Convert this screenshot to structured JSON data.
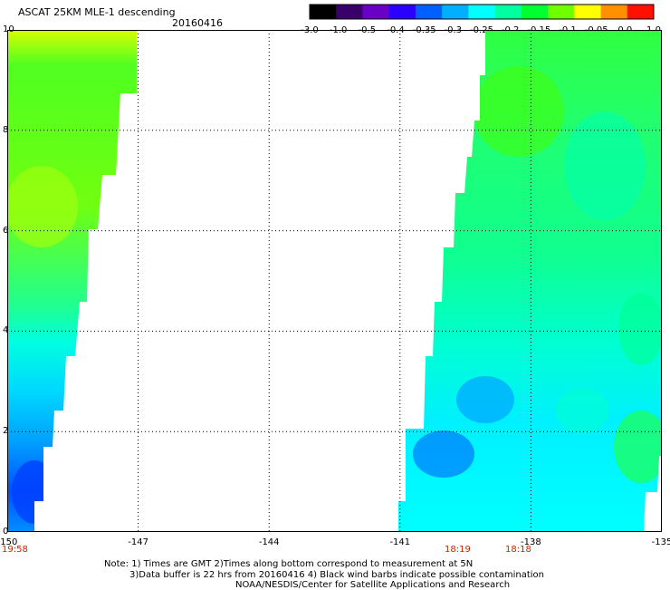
{
  "header": {
    "title": "ASCAT 25KM MLE-1 descending",
    "date": "20160416"
  },
  "colorbar": {
    "labels": [
      "-3.0",
      "-1.0",
      "-0.5",
      "-0.4",
      "-0.35",
      "-0.3",
      "-0.25",
      "-0.2",
      "-0.15",
      "-0.1",
      "-0.05",
      "0.0",
      "1.0"
    ],
    "colors": [
      "#000000",
      "#3a006a",
      "#6a00c8",
      "#2a00ff",
      "#0060ff",
      "#00b0ff",
      "#00ffff",
      "#00ffa0",
      "#00ff30",
      "#70ff00",
      "#ffff00",
      "#ff9000",
      "#ff1000"
    ]
  },
  "map": {
    "x_ticks": [
      "-150",
      "-147",
      "-144",
      "-141",
      "-138",
      "-135"
    ],
    "y_ticks": [
      "10",
      "8",
      "6",
      "4",
      "2",
      "0"
    ],
    "x_range": [
      -150,
      -135
    ],
    "y_range": [
      0,
      10
    ],
    "gridlines": "dotted",
    "pass_times": [
      "19:58",
      "18:19",
      "18:18"
    ]
  },
  "notes": {
    "line1": "Note: 1) Times are GMT 2)Times along bottom correspond to measurement at 5N",
    "line2": "3)Data buffer is 22 hrs from 20160416 4) Black wind barbs indicate possible contamination",
    "line3": "NOAA/NESDIS/Center for Satellite Applications and Research"
  }
}
